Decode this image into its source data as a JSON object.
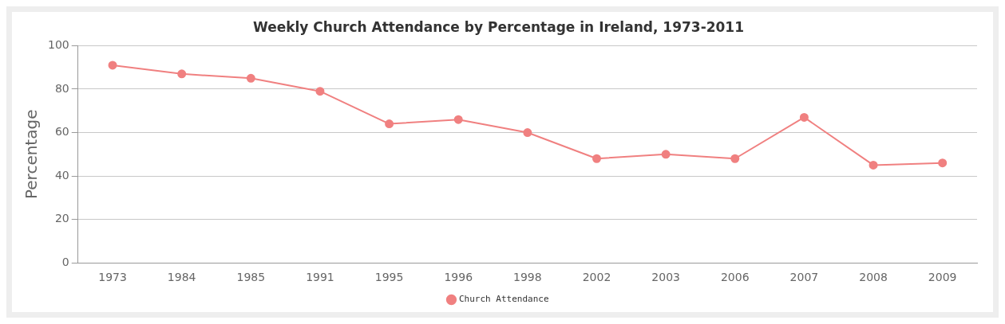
{
  "chart_data": {
    "type": "line",
    "title": "Weekly Church Attendance by Percentage in Ireland, 1973-2011",
    "ylabel": "Percentage",
    "categories": [
      "1973",
      "1984",
      "1985",
      "1991",
      "1995",
      "1996",
      "1998",
      "2002",
      "2003",
      "2006",
      "2007",
      "2008",
      "2009"
    ],
    "series": [
      {
        "name": "Church Attendance",
        "color": "#f08080",
        "values": [
          91,
          87,
          85,
          79,
          64,
          66,
          60,
          48,
          50,
          48,
          67,
          45,
          46
        ]
      }
    ],
    "ylim": [
      0,
      100
    ],
    "yticks": [
      0,
      20,
      40,
      60,
      80,
      100
    ],
    "grid": "y",
    "legend": "bottom",
    "marker": "circle"
  }
}
